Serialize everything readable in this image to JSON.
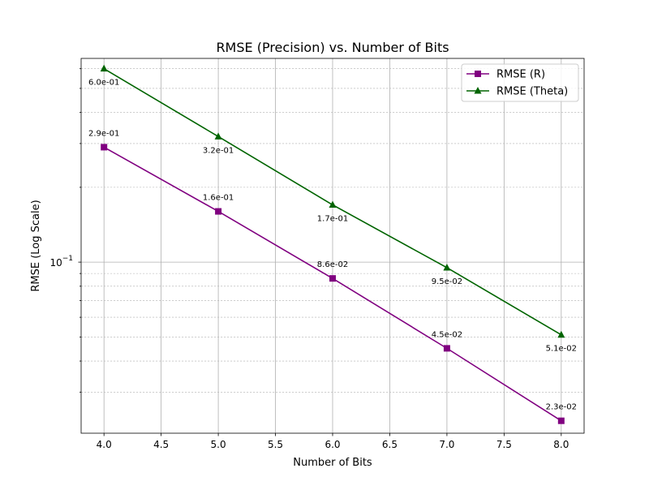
{
  "chart_data": {
    "type": "line",
    "title": "RMSE (Precision) vs. Number of Bits",
    "xlabel": "Number of Bits",
    "ylabel": "RMSE (Log Scale)",
    "yscale": "log",
    "xlim": [
      3.8,
      8.2
    ],
    "ylim": [
      0.0205,
      0.66
    ],
    "x_ticks": [
      4.0,
      4.5,
      5.0,
      5.5,
      6.0,
      6.5,
      7.0,
      7.5,
      8.0
    ],
    "x_tick_labels": [
      "4.0",
      "4.5",
      "5.0",
      "5.5",
      "6.0",
      "6.5",
      "7.0",
      "7.5",
      "8.0"
    ],
    "y_major_ticks": [
      {
        "value": 0.1,
        "base": "10",
        "exp": "−1"
      }
    ],
    "y_minor_ticks": [
      0.03,
      0.04,
      0.05,
      0.06,
      0.07,
      0.08,
      0.09,
      0.2,
      0.3,
      0.4,
      0.5,
      0.6
    ],
    "grid": true,
    "legend_position": "top-right",
    "x": [
      4,
      5,
      6,
      7,
      8
    ],
    "series": [
      {
        "name": "RMSE (R)",
        "color": "#800080",
        "marker": "square",
        "label_position": "above",
        "values": [
          0.29,
          0.16,
          0.086,
          0.045,
          0.023
        ],
        "labels": [
          "2.9e-01",
          "1.6e-01",
          "8.6e-02",
          "4.5e-02",
          "2.3e-02"
        ]
      },
      {
        "name": "RMSE (Theta)",
        "color": "#006400",
        "marker": "triangle",
        "label_position": "below",
        "values": [
          0.6,
          0.32,
          0.17,
          0.095,
          0.051
        ],
        "labels": [
          "6.0e-01",
          "3.2e-01",
          "1.7e-01",
          "9.5e-02",
          "5.1e-02"
        ]
      }
    ]
  }
}
